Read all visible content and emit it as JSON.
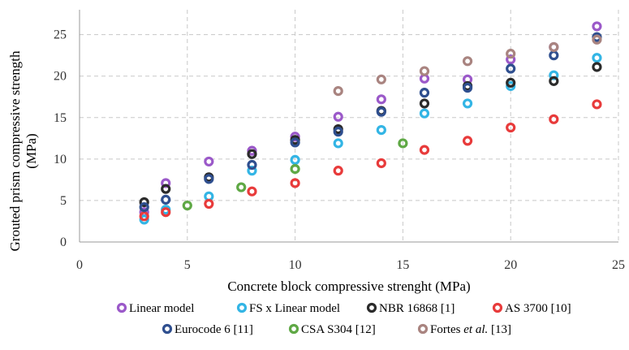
{
  "chart_data": {
    "type": "scatter",
    "xlabel": "Concrete block compressive strenght (MPa)",
    "ylabel_line1": "Grouted prism compressive strength",
    "ylabel_line2": "(MPa)",
    "xlim": [
      0,
      25
    ],
    "ylim": [
      0,
      28
    ],
    "xticks": [
      "0",
      "5",
      "10",
      "15",
      "20",
      "25"
    ],
    "yticks": [
      "0",
      "5",
      "10",
      "15",
      "20",
      "25"
    ],
    "xtick_values": [
      0,
      5,
      10,
      15,
      20,
      25
    ],
    "ytick_values": [
      0,
      5,
      10,
      15,
      20,
      25
    ],
    "grid": "dashed",
    "legend_position": "bottom",
    "series": [
      {
        "name": "Linear model",
        "color": "#9b59c9",
        "points": [
          [
            3,
            3.6
          ],
          [
            4,
            7.1
          ],
          [
            6,
            9.7
          ],
          [
            8,
            11.0
          ],
          [
            10,
            12.7
          ],
          [
            12,
            15.1
          ],
          [
            14,
            17.2
          ],
          [
            16,
            19.7
          ],
          [
            18,
            19.6
          ],
          [
            20,
            22.0
          ],
          [
            22,
            23.5
          ],
          [
            24,
            26.0
          ]
        ]
      },
      {
        "name": "FS x Linear model",
        "color": "#33b5e5",
        "points": [
          [
            3,
            2.7
          ],
          [
            4,
            3.9
          ],
          [
            6,
            5.5
          ],
          [
            8,
            8.6
          ],
          [
            10,
            9.9
          ],
          [
            12,
            11.9
          ],
          [
            14,
            13.5
          ],
          [
            16,
            15.5
          ],
          [
            18,
            16.7
          ],
          [
            20,
            18.8
          ],
          [
            22,
            20.1
          ],
          [
            24,
            22.2
          ]
        ]
      },
      {
        "name": "NBR 16868 [1]",
        "color": "#2b2b2b",
        "points": [
          [
            3,
            4.8
          ],
          [
            4,
            6.4
          ],
          [
            6,
            7.8
          ],
          [
            8,
            10.6
          ],
          [
            10,
            12.3
          ],
          [
            12,
            13.6
          ],
          [
            14,
            15.8
          ],
          [
            16,
            16.7
          ],
          [
            18,
            18.8
          ],
          [
            20,
            19.2
          ],
          [
            22,
            19.4
          ],
          [
            24,
            21.1
          ]
        ]
      },
      {
        "name": "AS 3700 [10]",
        "color": "#e83b3b",
        "points": [
          [
            3,
            3.1
          ],
          [
            4,
            3.6
          ],
          [
            6,
            4.6
          ],
          [
            8,
            6.1
          ],
          [
            10,
            7.1
          ],
          [
            12,
            8.6
          ],
          [
            14,
            9.5
          ],
          [
            16,
            11.1
          ],
          [
            18,
            12.2
          ],
          [
            20,
            13.8
          ],
          [
            22,
            14.8
          ],
          [
            24,
            16.6
          ]
        ]
      },
      {
        "name": "Eurocode 6 [11]",
        "color": "#2f4f8f",
        "points": [
          [
            3,
            4.2
          ],
          [
            4,
            5.1
          ],
          [
            6,
            7.6
          ],
          [
            8,
            9.3
          ],
          [
            10,
            12.0
          ],
          [
            12,
            13.3
          ],
          [
            14,
            15.7
          ],
          [
            16,
            18.0
          ],
          [
            18,
            18.6
          ],
          [
            20,
            20.9
          ],
          [
            22,
            22.5
          ],
          [
            24,
            24.7
          ]
        ]
      },
      {
        "name": "CSA S304 [12]",
        "color": "#5fa845",
        "points": [
          [
            5,
            4.4
          ],
          [
            7.5,
            6.6
          ],
          [
            10,
            8.8
          ],
          [
            15,
            11.9
          ]
        ]
      },
      {
        "name": "Fortes et al. [13]",
        "color": "#a98480",
        "points": [
          [
            12,
            18.2
          ],
          [
            14,
            19.6
          ],
          [
            16,
            20.6
          ],
          [
            18,
            21.8
          ],
          [
            20,
            22.7
          ],
          [
            22,
            23.5
          ],
          [
            24,
            24.4
          ]
        ]
      }
    ],
    "legend_rows": [
      [
        {
          "label": "Linear model",
          "color": "#9b59c9"
        },
        {
          "label": "FS x Linear model",
          "color": "#33b5e5"
        },
        {
          "label": "NBR 16868 [1]",
          "color": "#2b2b2b"
        },
        {
          "label": "AS 3700 [10]",
          "color": "#e83b3b"
        }
      ],
      [
        {
          "label": "Eurocode 6 [11]",
          "color": "#2f4f8f"
        },
        {
          "label": "CSA S304 [12]",
          "color": "#5fa845"
        },
        {
          "label_parts": [
            "Fortes ",
            "et al.",
            " [13]"
          ],
          "color": "#a98480"
        }
      ]
    ]
  }
}
